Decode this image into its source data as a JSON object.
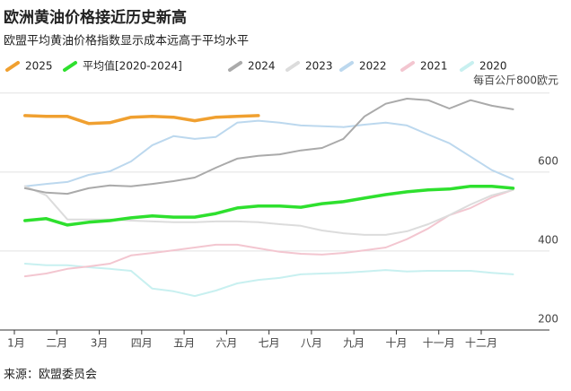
{
  "chart_data": {
    "type": "line",
    "title": "欧洲黄油价格接近历史新高",
    "subtitle": "欧盟平均黄油价格指数显示成本远高于平均水平",
    "source": "来源：欧盟委员会",
    "x": [
      1.25,
      1.75,
      2.25,
      2.75,
      3.25,
      3.75,
      4.25,
      4.75,
      5.25,
      5.75,
      6.25,
      6.75,
      7.25,
      7.75,
      8.25,
      8.75,
      9.25,
      9.75,
      10.25,
      10.75,
      11.25,
      11.75,
      12.25,
      12.75
    ],
    "xlim": [
      1,
      13.1
    ],
    "xticks": [
      {
        "value": 1,
        "label": "1月"
      },
      {
        "value": 2,
        "label": "二月"
      },
      {
        "value": 3,
        "label": "3月"
      },
      {
        "value": 4,
        "label": "四月"
      },
      {
        "value": 5,
        "label": "五月"
      },
      {
        "value": 6,
        "label": "六月"
      },
      {
        "value": 7,
        "label": "七月"
      },
      {
        "value": 8,
        "label": "八月"
      },
      {
        "value": 9,
        "label": "九月"
      },
      {
        "value": 10,
        "label": "十月"
      },
      {
        "value": 11,
        "label": "十一月"
      },
      {
        "value": 12,
        "label": "十二月"
      }
    ],
    "ylim": [
      200,
      820
    ],
    "yticks": [
      200,
      400,
      600,
      {
        "value": 800,
        "label": "每百公斤800欧元"
      }
    ],
    "grid": true,
    "series": [
      {
        "name": "2025",
        "color": "#f0a030",
        "values": [
          743,
          741,
          741,
          723,
          725,
          739,
          741,
          739,
          730,
          739,
          741,
          743,
          null,
          null,
          null,
          null,
          null,
          null,
          null,
          null,
          null,
          null,
          null,
          null
        ]
      },
      {
        "name": "平均值[2020-2024]",
        "color": "#2ee02e",
        "values": [
          477,
          482,
          466,
          473,
          477,
          484,
          489,
          486,
          486,
          495,
          509,
          514,
          514,
          511,
          520,
          525,
          534,
          543,
          550,
          555,
          557,
          564,
          564,
          559
        ]
      },
      {
        "name": "2024",
        "color": "#aaaaaa",
        "values": [
          559,
          548,
          545,
          559,
          566,
          564,
          570,
          577,
          586,
          611,
          634,
          641,
          645,
          655,
          661,
          684,
          741,
          773,
          786,
          782,
          761,
          782,
          768,
          759
        ]
      },
      {
        "name": "2023",
        "color": "#dcdcdc",
        "values": [
          564,
          541,
          480,
          480,
          480,
          477,
          475,
          473,
          473,
          475,
          475,
          473,
          468,
          464,
          452,
          445,
          441,
          441,
          450,
          468,
          491,
          518,
          541,
          555
        ]
      },
      {
        "name": "2022",
        "color": "#bcd8ee",
        "values": [
          564,
          570,
          575,
          593,
          602,
          627,
          668,
          691,
          684,
          689,
          725,
          730,
          725,
          718,
          716,
          714,
          720,
          725,
          718,
          695,
          673,
          639,
          605,
          582
        ]
      },
      {
        "name": "2021",
        "color": "#f3c6d0",
        "values": [
          336,
          343,
          355,
          361,
          368,
          389,
          395,
          402,
          409,
          416,
          416,
          407,
          398,
          393,
          391,
          395,
          402,
          409,
          430,
          457,
          491,
          509,
          536,
          555
        ]
      },
      {
        "name": "2020",
        "color": "#c8f0f0",
        "values": [
          368,
          364,
          364,
          359,
          355,
          350,
          305,
          298,
          286,
          300,
          318,
          327,
          332,
          341,
          343,
          345,
          348,
          352,
          348,
          350,
          350,
          350,
          345,
          341
        ]
      }
    ]
  }
}
